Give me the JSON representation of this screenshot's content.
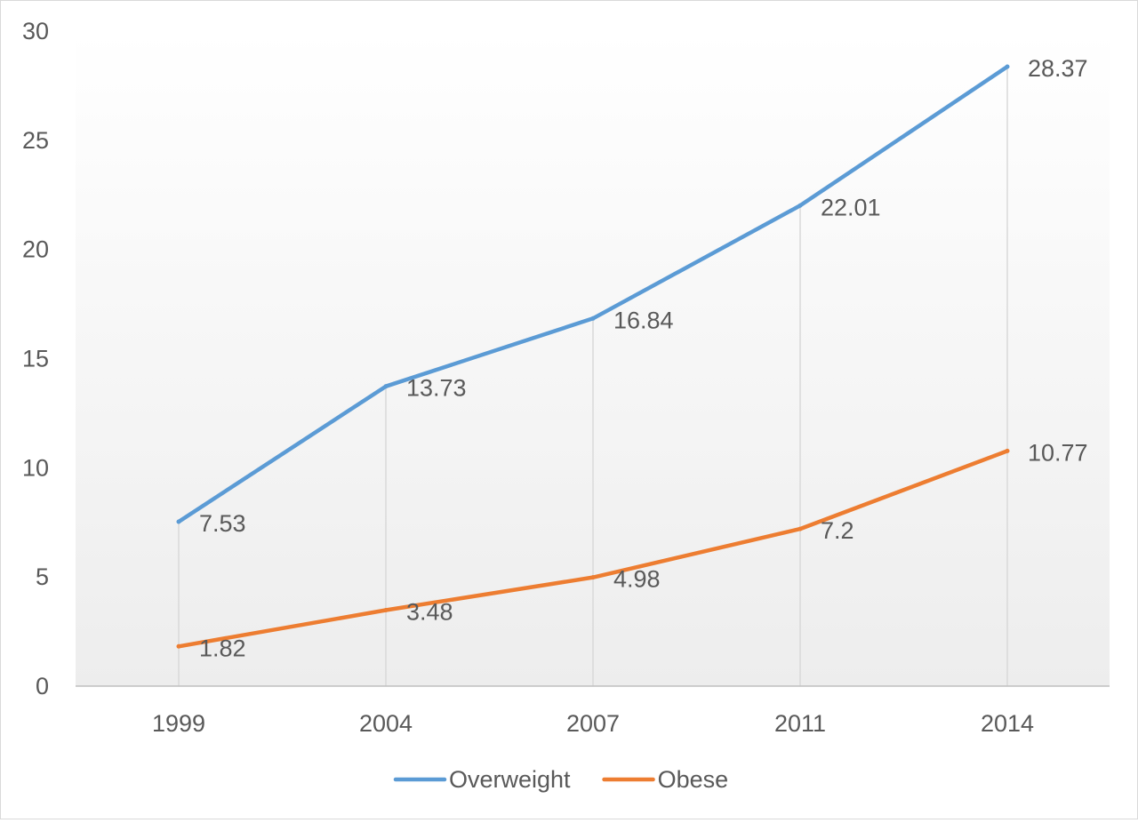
{
  "chart_data": {
    "type": "line",
    "title": "",
    "xlabel": "",
    "ylabel": "",
    "categories": [
      "1999",
      "2004",
      "2007",
      "2011",
      "2014"
    ],
    "ylim": [
      0,
      30
    ],
    "yticks": [
      0,
      5,
      10,
      15,
      20,
      25,
      30
    ],
    "grid": "vertical drop lines at each category",
    "legend": "bottom",
    "series": [
      {
        "name": "Overweight",
        "color": "#5b9bd5",
        "values": [
          7.53,
          13.73,
          16.84,
          22.01,
          28.37
        ],
        "labels": [
          "7.53",
          "13.73",
          "16.84",
          "22.01",
          "28.37"
        ]
      },
      {
        "name": "Obese",
        "color": "#ed7d31",
        "values": [
          1.82,
          3.48,
          4.98,
          7.2,
          10.77
        ],
        "labels": [
          "1.82",
          "3.48",
          "4.98",
          "7.2",
          "10.77"
        ]
      }
    ]
  }
}
